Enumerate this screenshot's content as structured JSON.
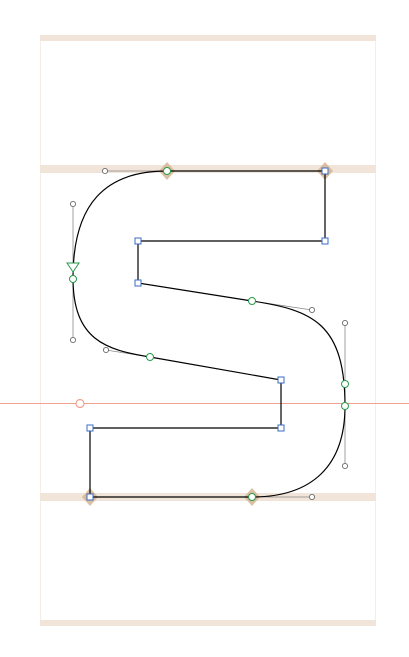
{
  "editor": {
    "glyph_name": "S",
    "colors": {
      "background": "#ffffff",
      "metric_band": "#f1e4d8",
      "metric_line": "#f6ede6",
      "baseline_guide": "#f2a090",
      "outline": "#000000",
      "corner_point": "#3a6bc4",
      "smooth_point": "#2a9a4a",
      "handle": "#8a8a8a",
      "alignment_zone_marker": "#d5b594"
    }
  }
}
